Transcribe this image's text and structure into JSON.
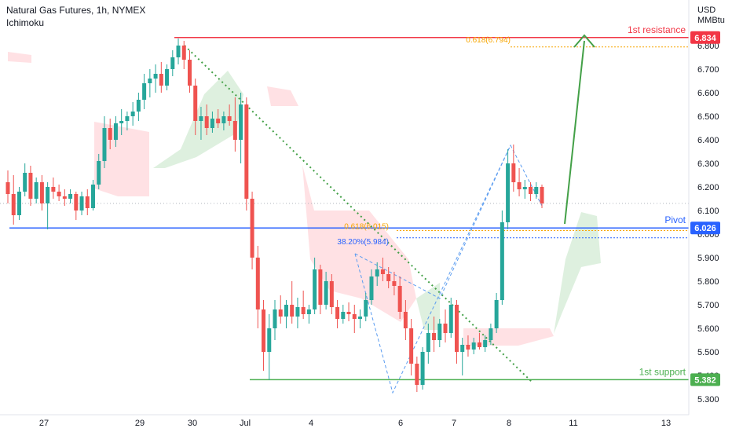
{
  "header": {
    "title": "Natural Gas Futures, 1h, NYMEX",
    "indicator": "Ichimoku"
  },
  "colors": {
    "up": "#26a69a",
    "down": "#ef5350",
    "resistance": "#f23645",
    "pivot": "#2962ff",
    "support": "#4caf50",
    "fib": "#f7a600",
    "fib_blue": "#2962ff",
    "arrow": "#43a047",
    "trend_dotted": "#43a047",
    "cloud_green": "#c8e6c9",
    "cloud_red": "#ffcdd2"
  },
  "chart_data": {
    "type": "candlestick",
    "ylim": [
      5.25,
      6.95
    ],
    "y_axis": {
      "unit_line1": "USD",
      "unit_line2": "MMBtu",
      "ticks": [
        "6.800",
        "6.700",
        "6.600",
        "6.500",
        "6.400",
        "6.300",
        "6.200",
        "6.100",
        "6.000",
        "5.900",
        "5.800",
        "5.700",
        "5.600",
        "5.500",
        "5.400",
        "5.300"
      ]
    },
    "x_axis": {
      "ticks": [
        "27",
        "29",
        "30",
        "Jul",
        "4",
        "6",
        "7",
        "8",
        "11",
        "13"
      ]
    },
    "levels": [
      {
        "label": "1st resistance",
        "value": 6.834,
        "badge": "6.834"
      },
      {
        "label": "Pivot",
        "value": 6.026,
        "badge": "6.026"
      },
      {
        "label": "1st support",
        "value": 5.382,
        "badge": "5.382"
      }
    ],
    "fib_labels": [
      {
        "text": "0.618(6.015)",
        "value": 6.015
      },
      {
        "text": "38.20%(5.984)",
        "value": 5.984
      },
      {
        "text": "0.618(6.794)",
        "value": 6.794
      }
    ],
    "last_price": 6.13,
    "candles": [
      {
        "o": 6.22,
        "h": 6.27,
        "l": 6.13,
        "c": 6.17
      },
      {
        "o": 6.17,
        "h": 6.25,
        "l": 6.04,
        "c": 6.08
      },
      {
        "o": 6.08,
        "h": 6.2,
        "l": 6.06,
        "c": 6.18
      },
      {
        "o": 6.18,
        "h": 6.3,
        "l": 6.16,
        "c": 6.26
      },
      {
        "o": 6.26,
        "h": 6.29,
        "l": 6.12,
        "c": 6.15
      },
      {
        "o": 6.15,
        "h": 6.24,
        "l": 6.13,
        "c": 6.22
      },
      {
        "o": 6.22,
        "h": 6.25,
        "l": 6.1,
        "c": 6.13
      },
      {
        "o": 6.13,
        "h": 6.22,
        "l": 6.02,
        "c": 6.2
      },
      {
        "o": 6.2,
        "h": 6.24,
        "l": 6.15,
        "c": 6.18
      },
      {
        "o": 6.18,
        "h": 6.21,
        "l": 6.14,
        "c": 6.16
      },
      {
        "o": 6.16,
        "h": 6.19,
        "l": 6.12,
        "c": 6.15
      },
      {
        "o": 6.15,
        "h": 6.19,
        "l": 6.13,
        "c": 6.17
      },
      {
        "o": 6.17,
        "h": 6.18,
        "l": 6.06,
        "c": 6.1
      },
      {
        "o": 6.1,
        "h": 6.18,
        "l": 6.08,
        "c": 6.16
      },
      {
        "o": 6.16,
        "h": 6.19,
        "l": 6.08,
        "c": 6.11
      },
      {
        "o": 6.11,
        "h": 6.23,
        "l": 6.1,
        "c": 6.21
      },
      {
        "o": 6.21,
        "h": 6.34,
        "l": 6.19,
        "c": 6.31
      },
      {
        "o": 6.31,
        "h": 6.5,
        "l": 6.28,
        "c": 6.45
      },
      {
        "o": 6.45,
        "h": 6.49,
        "l": 6.36,
        "c": 6.4
      },
      {
        "o": 6.4,
        "h": 6.5,
        "l": 6.37,
        "c": 6.47
      },
      {
        "o": 6.47,
        "h": 6.53,
        "l": 6.42,
        "c": 6.48
      },
      {
        "o": 6.48,
        "h": 6.52,
        "l": 6.44,
        "c": 6.5
      },
      {
        "o": 6.5,
        "h": 6.56,
        "l": 6.46,
        "c": 6.52
      },
      {
        "o": 6.52,
        "h": 6.6,
        "l": 6.48,
        "c": 6.57
      },
      {
        "o": 6.57,
        "h": 6.68,
        "l": 6.53,
        "c": 6.64
      },
      {
        "o": 6.64,
        "h": 6.7,
        "l": 6.58,
        "c": 6.66
      },
      {
        "o": 6.66,
        "h": 6.72,
        "l": 6.6,
        "c": 6.68
      },
      {
        "o": 6.68,
        "h": 6.73,
        "l": 6.6,
        "c": 6.63
      },
      {
        "o": 6.63,
        "h": 6.72,
        "l": 6.61,
        "c": 6.7
      },
      {
        "o": 6.7,
        "h": 6.78,
        "l": 6.67,
        "c": 6.75
      },
      {
        "o": 6.75,
        "h": 6.83,
        "l": 6.72,
        "c": 6.8
      },
      {
        "o": 6.8,
        "h": 6.82,
        "l": 6.7,
        "c": 6.74
      },
      {
        "o": 6.74,
        "h": 6.78,
        "l": 6.6,
        "c": 6.63
      },
      {
        "o": 6.63,
        "h": 6.66,
        "l": 6.42,
        "c": 6.48
      },
      {
        "o": 6.48,
        "h": 6.54,
        "l": 6.4,
        "c": 6.5
      },
      {
        "o": 6.5,
        "h": 6.55,
        "l": 6.42,
        "c": 6.45
      },
      {
        "o": 6.45,
        "h": 6.52,
        "l": 6.43,
        "c": 6.49
      },
      {
        "o": 6.49,
        "h": 6.53,
        "l": 6.45,
        "c": 6.47
      },
      {
        "o": 6.47,
        "h": 6.52,
        "l": 6.44,
        "c": 6.5
      },
      {
        "o": 6.5,
        "h": 6.55,
        "l": 6.46,
        "c": 6.48
      },
      {
        "o": 6.48,
        "h": 6.58,
        "l": 6.35,
        "c": 6.4
      },
      {
        "o": 6.4,
        "h": 6.6,
        "l": 6.3,
        "c": 6.55
      },
      {
        "o": 6.55,
        "h": 6.58,
        "l": 6.1,
        "c": 6.15
      },
      {
        "o": 6.15,
        "h": 6.18,
        "l": 5.85,
        "c": 5.9
      },
      {
        "o": 5.9,
        "h": 5.95,
        "l": 5.6,
        "c": 5.68
      },
      {
        "o": 5.68,
        "h": 5.72,
        "l": 5.42,
        "c": 5.5
      },
      {
        "o": 5.5,
        "h": 5.66,
        "l": 5.38,
        "c": 5.6
      },
      {
        "o": 5.6,
        "h": 5.72,
        "l": 5.55,
        "c": 5.68
      },
      {
        "o": 5.68,
        "h": 5.74,
        "l": 5.62,
        "c": 5.65
      },
      {
        "o": 5.65,
        "h": 5.72,
        "l": 5.6,
        "c": 5.7
      },
      {
        "o": 5.7,
        "h": 5.8,
        "l": 5.62,
        "c": 5.65
      },
      {
        "o": 5.65,
        "h": 5.73,
        "l": 5.6,
        "c": 5.69
      },
      {
        "o": 5.69,
        "h": 5.76,
        "l": 5.64,
        "c": 5.66
      },
      {
        "o": 5.66,
        "h": 5.7,
        "l": 5.62,
        "c": 5.68
      },
      {
        "o": 5.68,
        "h": 5.9,
        "l": 5.66,
        "c": 5.85
      },
      {
        "o": 5.85,
        "h": 5.87,
        "l": 5.66,
        "c": 5.7
      },
      {
        "o": 5.7,
        "h": 5.84,
        "l": 5.68,
        "c": 5.8
      },
      {
        "o": 5.8,
        "h": 5.83,
        "l": 5.66,
        "c": 5.69
      },
      {
        "o": 5.69,
        "h": 5.72,
        "l": 5.6,
        "c": 5.64
      },
      {
        "o": 5.64,
        "h": 5.7,
        "l": 5.62,
        "c": 5.67
      },
      {
        "o": 5.67,
        "h": 5.71,
        "l": 5.63,
        "c": 5.66
      },
      {
        "o": 5.66,
        "h": 5.7,
        "l": 5.58,
        "c": 5.64
      },
      {
        "o": 5.64,
        "h": 5.68,
        "l": 5.6,
        "c": 5.65
      },
      {
        "o": 5.65,
        "h": 5.75,
        "l": 5.63,
        "c": 5.72
      },
      {
        "o": 5.72,
        "h": 5.85,
        "l": 5.7,
        "c": 5.82
      },
      {
        "o": 5.82,
        "h": 5.88,
        "l": 5.78,
        "c": 5.85
      },
      {
        "o": 5.85,
        "h": 5.9,
        "l": 5.8,
        "c": 5.83
      },
      {
        "o": 5.83,
        "h": 5.86,
        "l": 5.77,
        "c": 5.8
      },
      {
        "o": 5.8,
        "h": 5.84,
        "l": 5.74,
        "c": 5.78
      },
      {
        "o": 5.78,
        "h": 5.82,
        "l": 5.64,
        "c": 5.67
      },
      {
        "o": 5.67,
        "h": 5.72,
        "l": 5.55,
        "c": 5.6
      },
      {
        "o": 5.6,
        "h": 5.64,
        "l": 5.4,
        "c": 5.45
      },
      {
        "o": 5.45,
        "h": 5.48,
        "l": 5.33,
        "c": 5.36
      },
      {
        "o": 5.36,
        "h": 5.52,
        "l": 5.34,
        "c": 5.5
      },
      {
        "o": 5.5,
        "h": 5.62,
        "l": 5.45,
        "c": 5.58
      },
      {
        "o": 5.58,
        "h": 5.65,
        "l": 5.5,
        "c": 5.55
      },
      {
        "o": 5.55,
        "h": 5.64,
        "l": 5.52,
        "c": 5.62
      },
      {
        "o": 5.62,
        "h": 5.68,
        "l": 5.54,
        "c": 5.58
      },
      {
        "o": 5.58,
        "h": 5.73,
        "l": 5.56,
        "c": 5.7
      },
      {
        "o": 5.7,
        "h": 5.72,
        "l": 5.45,
        "c": 5.5
      },
      {
        "o": 5.5,
        "h": 5.56,
        "l": 5.4,
        "c": 5.53
      },
      {
        "o": 5.53,
        "h": 5.57,
        "l": 5.48,
        "c": 5.51
      },
      {
        "o": 5.51,
        "h": 5.56,
        "l": 5.49,
        "c": 5.54
      },
      {
        "o": 5.54,
        "h": 5.58,
        "l": 5.51,
        "c": 5.52
      },
      {
        "o": 5.52,
        "h": 5.57,
        "l": 5.5,
        "c": 5.55
      },
      {
        "o": 5.55,
        "h": 5.62,
        "l": 5.53,
        "c": 5.6
      },
      {
        "o": 5.6,
        "h": 5.75,
        "l": 5.58,
        "c": 5.72
      },
      {
        "o": 5.72,
        "h": 6.1,
        "l": 5.7,
        "c": 6.05
      },
      {
        "o": 6.05,
        "h": 6.36,
        "l": 6.02,
        "c": 6.3
      },
      {
        "o": 6.3,
        "h": 6.38,
        "l": 6.18,
        "c": 6.22
      },
      {
        "o": 6.22,
        "h": 6.28,
        "l": 6.16,
        "c": 6.19
      },
      {
        "o": 6.19,
        "h": 6.23,
        "l": 6.15,
        "c": 6.2
      },
      {
        "o": 6.2,
        "h": 6.22,
        "l": 6.14,
        "c": 6.17
      },
      {
        "o": 6.17,
        "h": 6.22,
        "l": 6.15,
        "c": 6.2
      },
      {
        "o": 6.2,
        "h": 6.21,
        "l": 6.11,
        "c": 6.13
      }
    ]
  }
}
